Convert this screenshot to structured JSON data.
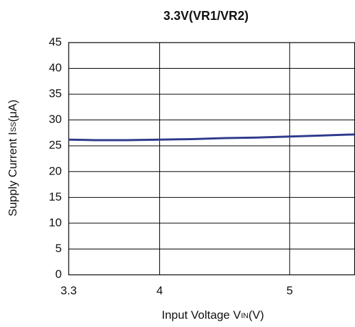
{
  "chart_data": {
    "type": "line",
    "title": "3.3V(VR1/VR2)",
    "xlabel": [
      "Input Voltage V",
      "IN",
      "(V)"
    ],
    "ylabel": [
      "Supply Current I",
      "SS",
      "(μA)"
    ],
    "x": [
      3.3,
      3.5,
      3.75,
      4,
      4.25,
      4.5,
      4.75,
      5,
      5.25,
      5.5
    ],
    "series": [
      {
        "name": null,
        "color": "#2e3a8c",
        "values": [
          26.2,
          26.1,
          26.1,
          26.2,
          26.3,
          26.5,
          26.6,
          26.8,
          27.0,
          27.2
        ]
      }
    ],
    "xlim": [
      3.3,
      5.5
    ],
    "xticks": [
      3.3,
      4,
      5
    ],
    "ylim": [
      0,
      45
    ],
    "yticks": [
      0,
      5,
      10,
      15,
      20,
      25,
      30,
      35,
      40,
      45
    ],
    "grid": true
  }
}
